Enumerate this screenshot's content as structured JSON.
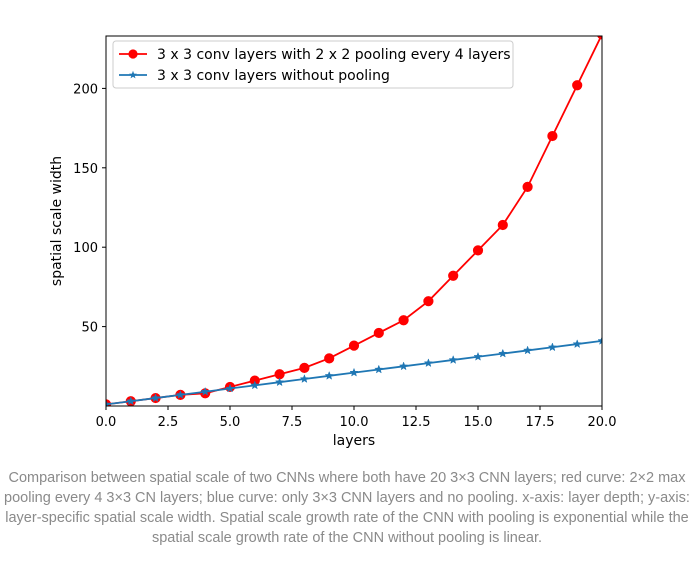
{
  "chart_data": {
    "type": "line",
    "xlabel": "layers",
    "ylabel": "spatial scale width",
    "xlim": [
      0,
      20
    ],
    "ylim": [
      0,
      233
    ],
    "xticks": [
      0,
      2.5,
      5,
      7.5,
      10,
      12.5,
      15,
      17.5,
      20
    ],
    "xtick_labels": [
      "0.0",
      "2.5",
      "5.0",
      "7.5",
      "10.0",
      "12.5",
      "15.0",
      "17.5",
      "20.0"
    ],
    "yticks": [
      50,
      100,
      150,
      200
    ],
    "ytick_labels": [
      "50",
      "100",
      "150",
      "200"
    ],
    "grid": false,
    "legend_position": "top-left",
    "series": [
      {
        "name": "3 x 3 conv layers with 2 x 2 pooling every 4 layers",
        "color": "#ff0000",
        "marker": "circle",
        "x": [
          0,
          1,
          2,
          3,
          4,
          5,
          6,
          7,
          8,
          9,
          10,
          11,
          12,
          13,
          14,
          15,
          16,
          17,
          18,
          19,
          20
        ],
        "y": [
          1,
          3,
          5,
          7,
          8,
          12,
          16,
          20,
          24,
          30,
          38,
          46,
          54,
          66,
          82,
          98,
          114,
          138,
          170,
          202,
          234
        ]
      },
      {
        "name": "3 x 3 conv layers without pooling",
        "color": "#1f77b4",
        "marker": "star",
        "x": [
          0,
          1,
          2,
          3,
          4,
          5,
          6,
          7,
          8,
          9,
          10,
          11,
          12,
          13,
          14,
          15,
          16,
          17,
          18,
          19,
          20
        ],
        "y": [
          1,
          3,
          5,
          7,
          9,
          11,
          13,
          15,
          17,
          19,
          21,
          23,
          25,
          27,
          29,
          31,
          33,
          35,
          37,
          39,
          41
        ]
      }
    ]
  },
  "caption": "Comparison between spatial scale of two CNNs where both have 20 3×3 CNN layers; red curve: 2×2 max pooling every 4 3×3 CN layers; blue curve: only 3×3 CNN layers and no pooling. x-axis: layer depth; y-axis: layer-specific spatial scale width. Spatial scale growth rate of the CNN with pooling is exponential while the spatial scale growth rate of the CNN without pooling is linear."
}
